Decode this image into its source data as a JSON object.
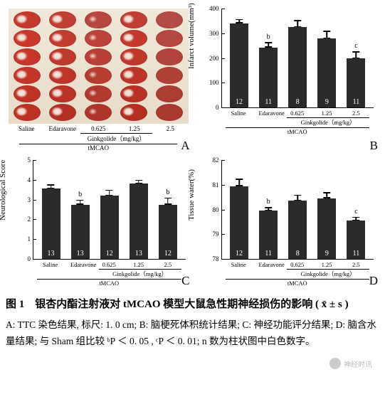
{
  "panelA": {
    "label": "A",
    "columns": [
      "Saline",
      "Edaravone",
      "0.625",
      "1.25",
      "2.5"
    ],
    "slice_colors_per_col": [
      [
        "#c43a2e",
        "#c9382c",
        "#c7362a",
        "#c33528",
        "#bf3326",
        "#bb3124"
      ],
      [
        "#c04035",
        "#c23c30",
        "#c0392d",
        "#bd362a",
        "#b93327",
        "#b53024"
      ],
      [
        "#b8483f",
        "#ba443a",
        "#b84036",
        "#b63d32",
        "#b2392e",
        "#ae352a"
      ],
      [
        "#c03e33",
        "#c23a2e",
        "#c0372b",
        "#bd3428",
        "#b93125",
        "#b52e22"
      ],
      [
        "#b34c44",
        "#b5483f",
        "#b3443b",
        "#b14037",
        "#ad3c33",
        "#a9382f"
      ]
    ],
    "ginkgolide_label": "Ginkgolide（mg/kg）",
    "tmcao_label": "tMCAO"
  },
  "panelB": {
    "label": "B",
    "ylabel": "Infarct volume(mm³)",
    "ymin": 0,
    "ymax": 400,
    "ytick_step": 100,
    "bars": [
      {
        "x": "Saline",
        "value": 340,
        "err": 18,
        "n": 12,
        "sig": ""
      },
      {
        "x": "Edaravone",
        "value": 242,
        "err": 22,
        "n": 11,
        "sig": "b"
      },
      {
        "x": "0.625",
        "value": 325,
        "err": 28,
        "n": 8,
        "sig": ""
      },
      {
        "x": "1.25",
        "value": 278,
        "err": 32,
        "n": 9,
        "sig": ""
      },
      {
        "x": "2.5",
        "value": 198,
        "err": 28,
        "n": 11,
        "sig": "c"
      }
    ],
    "bar_color": "#2b2b2b",
    "ginkgolide_label": "Ginkgolide（mg/kg）",
    "tmcao_label": "tMCAO"
  },
  "panelC": {
    "label": "C",
    "ylabel": "Neurological Score",
    "ymin": 0,
    "ymax": 5,
    "yticks": [
      0,
      1,
      2,
      3,
      4,
      5
    ],
    "bars": [
      {
        "x": "Saline",
        "value": 3.55,
        "err": 0.22,
        "n": 13,
        "sig": ""
      },
      {
        "x": "Edaravone",
        "value": 2.75,
        "err": 0.25,
        "n": 13,
        "sig": "b"
      },
      {
        "x": "0.625",
        "value": 3.2,
        "err": 0.3,
        "n": 12,
        "sig": ""
      },
      {
        "x": "1.25",
        "value": 3.8,
        "err": 0.2,
        "n": 13,
        "sig": ""
      },
      {
        "x": "2.5",
        "value": 2.75,
        "err": 0.35,
        "n": 12,
        "sig": "b"
      }
    ],
    "bar_color": "#2b2b2b",
    "ginkgolide_label": "Ginkgolide（mg/kg）",
    "tmcao_label": "tMCAO"
  },
  "panelD": {
    "label": "D",
    "ylabel": "Tissue water(%)",
    "ymin": 78,
    "ymax": 82,
    "yticks": [
      78,
      79,
      80,
      81,
      82
    ],
    "bars": [
      {
        "x": "Saline",
        "value": 80.95,
        "err": 0.3,
        "n": 12,
        "sig": ""
      },
      {
        "x": "Edaravone",
        "value": 79.95,
        "err": 0.15,
        "n": 11,
        "sig": "b"
      },
      {
        "x": "0.625",
        "value": 80.35,
        "err": 0.25,
        "n": 8,
        "sig": ""
      },
      {
        "x": "1.25",
        "value": 80.45,
        "err": 0.25,
        "n": 9,
        "sig": ""
      },
      {
        "x": "2.5",
        "value": 79.55,
        "err": 0.15,
        "n": 11,
        "sig": "c"
      }
    ],
    "bar_color": "#2b2b2b",
    "ginkgolide_label": "Ginkgolide（mg/kg）",
    "tmcao_label": "tMCAO"
  },
  "caption": {
    "title_prefix": "图 1",
    "title_main": "银杏内酯注射液对 tMCAO 模型大鼠急性期神经损伤的影响",
    "stat_notation": "( x̄ ± s )",
    "desc": "A: TTC 染色结果, 标尺: 1. 0 cm;  B:  脑梗死体积统计结果; C: 神经功能评分结果; D: 脑含水量结果; 与 Sham 组比较 ᵇP ＜ 0. 05 , ᶜP ＜ 0. 01; n 数为柱状图中白色数字。"
  },
  "watermark": "神经时讯"
}
